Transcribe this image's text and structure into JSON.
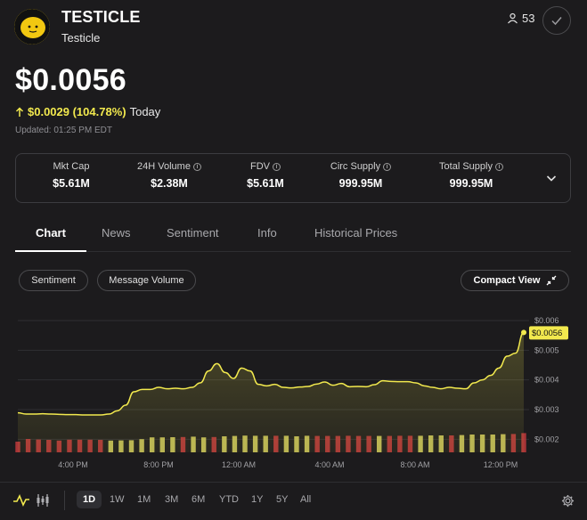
{
  "header": {
    "symbol": "TESTICLE",
    "name": "Testicle",
    "followers": "53",
    "price": "$0.0056",
    "change": "$0.0029 (104.78%)",
    "change_period": "Today",
    "updated": "Updated: 01:25 PM EDT",
    "colors": {
      "up": "#f2e94e",
      "background": "#1c1b1d"
    }
  },
  "stats": [
    {
      "label": "Mkt Cap",
      "value": "$5.61M",
      "has_info": false
    },
    {
      "label": "24H Volume",
      "value": "$2.38M",
      "has_info": true
    },
    {
      "label": "FDV",
      "value": "$5.61M",
      "has_info": true
    },
    {
      "label": "Circ Supply",
      "value": "999.95M",
      "has_info": true
    },
    {
      "label": "Total Supply",
      "value": "999.95M",
      "has_info": true
    }
  ],
  "tabs": [
    "Chart",
    "News",
    "Sentiment",
    "Info",
    "Historical Prices"
  ],
  "active_tab": "Chart",
  "toggles": {
    "sentiment": "Sentiment",
    "message_volume": "Message Volume",
    "compact_view": "Compact View"
  },
  "chart_data": {
    "type": "area",
    "x_tick_labels": [
      "4:00 PM",
      "8:00 PM",
      "12:00 AM",
      "4:00 AM",
      "8:00 AM",
      "12:00 PM"
    ],
    "y_tick_labels": [
      "$0.006",
      "$0.005",
      "$0.004",
      "$0.003",
      "$0.002"
    ],
    "y_ticks": [
      0.006,
      0.005,
      0.004,
      0.003,
      0.002
    ],
    "ylim": [
      0.00165,
      0.00615
    ],
    "last_price_label": "$0.0056",
    "series": [
      {
        "name": "price",
        "values": [
          0.00289,
          0.00285,
          0.00285,
          0.00286,
          0.00285,
          0.00284,
          0.00283,
          0.00283,
          0.00282,
          0.00282,
          0.00282,
          0.00285,
          0.00296,
          0.00315,
          0.0036,
          0.00368,
          0.00368,
          0.00375,
          0.0037,
          0.00372,
          0.0037,
          0.00375,
          0.0039,
          0.0043,
          0.00455,
          0.00425,
          0.00405,
          0.0044,
          0.0043,
          0.00385,
          0.0038,
          0.00385,
          0.00375,
          0.00373,
          0.00376,
          0.00378,
          0.00386,
          0.00393,
          0.00382,
          0.00388,
          0.00377,
          0.00378,
          0.00377,
          0.00384,
          0.00397,
          0.00395,
          0.00394,
          0.00394,
          0.0039,
          0.0038,
          0.00375,
          0.0037,
          0.00375,
          0.00372,
          0.0037,
          0.0039,
          0.004,
          0.00415,
          0.0044,
          0.0048,
          0.0049,
          0.0056
        ]
      },
      {
        "name": "sentiment_volume",
        "values": [
          0.6,
          0.75,
          0.72,
          0.7,
          0.66,
          0.71,
          0.71,
          0.71,
          0.7,
          0.66,
          0.67,
          0.68,
          0.74,
          0.84,
          0.84,
          0.85,
          0.86,
          0.88,
          0.84,
          0.86,
          0.9,
          0.92,
          0.94,
          0.93,
          0.93,
          0.93,
          0.93,
          0.9,
          0.93,
          0.92,
          0.92,
          0.92,
          0.93,
          0.92,
          0.92,
          0.92,
          0.92,
          0.93,
          0.93,
          0.93,
          0.95,
          0.95,
          0.95,
          0.97,
          1.0,
          1.0,
          1.0,
          1.02,
          1.03,
          1.08
        ],
        "colors": [
          "r",
          "r",
          "r",
          "r",
          "r",
          "r",
          "r",
          "r",
          "r",
          "y",
          "y",
          "y",
          "y",
          "y",
          "y",
          "y",
          "r",
          "y",
          "y",
          "r",
          "y",
          "y",
          "y",
          "y",
          "y",
          "r",
          "y",
          "y",
          "y",
          "r",
          "r",
          "r",
          "r",
          "r",
          "r",
          "y",
          "r",
          "r",
          "r",
          "y",
          "y",
          "y",
          "r",
          "y",
          "y",
          "y",
          "y",
          "y",
          "r",
          "r"
        ]
      }
    ]
  },
  "time_ranges": [
    "1D",
    "1W",
    "1M",
    "3M",
    "6M",
    "YTD",
    "1Y",
    "5Y",
    "All"
  ],
  "active_range": "1D"
}
